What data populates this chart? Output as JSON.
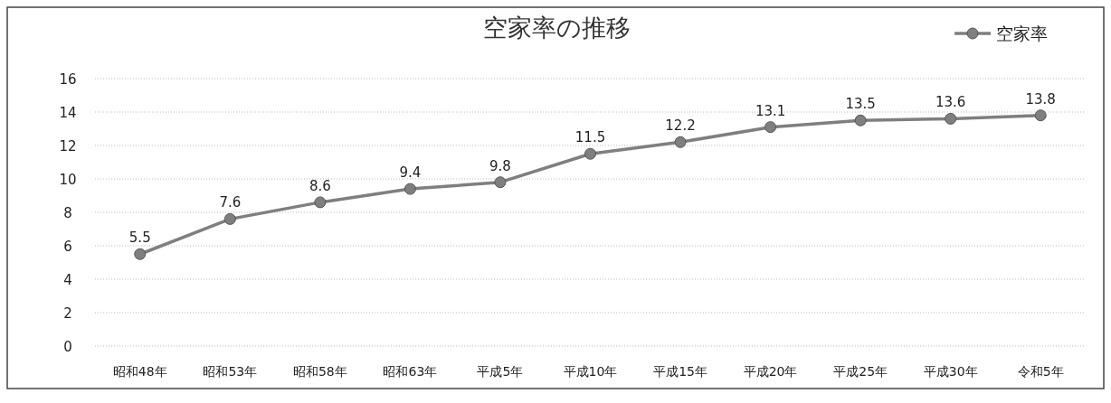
{
  "chart_data": {
    "type": "line",
    "title": "空家率の推移",
    "categories": [
      "昭和48年",
      "昭和53年",
      "昭和58年",
      "昭和63年",
      "平成5年",
      "平成10年",
      "平成15年",
      "平成20年",
      "平成25年",
      "平成30年",
      "令和5年"
    ],
    "series": [
      {
        "name": "空家率",
        "color": "#7f7f7f",
        "values": [
          5.5,
          7.6,
          8.6,
          9.4,
          9.8,
          11.5,
          12.2,
          13.1,
          13.5,
          13.6,
          13.8
        ]
      }
    ],
    "ylim": [
      0,
      16
    ],
    "yticks": [
      0,
      2,
      4,
      6,
      8,
      10,
      12,
      14,
      16
    ],
    "grid": "y",
    "legend": "top right",
    "marker": "circle",
    "line_style": "solid",
    "data_labels": true
  }
}
